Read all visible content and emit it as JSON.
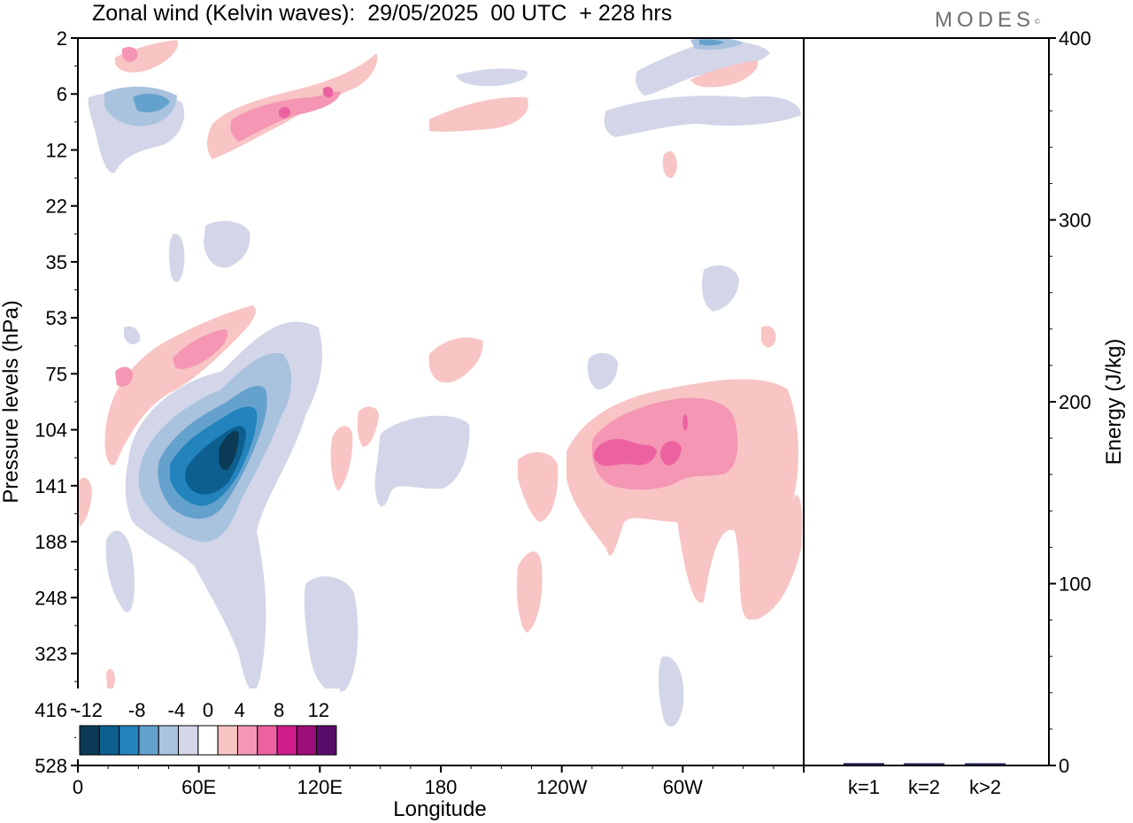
{
  "header": {
    "title": "Zonal wind (Kelvin waves):  29/05/2025  00 UTC  + 228 hrs",
    "logo": "MODES",
    "logo_mark": "©"
  },
  "chart_data": [
    {
      "type": "heatmap",
      "title": "Zonal wind (Kelvin waves):  29/05/2025  00 UTC  + 228 hrs",
      "xlabel": "Longitude",
      "ylabel": "Pressure levels (hPa)",
      "x_ticks": [
        "0",
        "60E",
        "120E",
        "180",
        "120W",
        "60W"
      ],
      "x_tick_values": [
        0,
        60,
        120,
        180,
        240,
        300
      ],
      "xlim": [
        0,
        360
      ],
      "y_ticks": [
        "2",
        "6",
        "12",
        "22",
        "35",
        "53",
        "75",
        "104",
        "141",
        "188",
        "248",
        "323",
        "416",
        "528"
      ],
      "y_scale": "pressure levels (inverted, model levels)",
      "colorbar": {
        "labels": [
          "-12",
          "-8",
          "-4",
          "0",
          "4",
          "8",
          "12"
        ],
        "levels": [
          -14,
          -12,
          -10,
          -8,
          -6,
          -4,
          -2,
          2,
          4,
          6,
          8,
          10,
          12,
          14
        ],
        "colors": [
          "#0b3a55",
          "#0d5f8f",
          "#2283bd",
          "#64a2cd",
          "#a9c2de",
          "#d2d6e8",
          "#ffffff",
          "#f8c4c4",
          "#f496b4",
          "#ec62a0",
          "#cf1e8b",
          "#9c0f78",
          "#5a0c6a"
        ]
      },
      "features": [
        {
          "name": "easterly core",
          "lon": 75,
          "level": "104-141",
          "min_value": -14
        },
        {
          "name": "westerly core",
          "lon": 280,
          "level": "104-141",
          "max_value": 8
        }
      ]
    },
    {
      "type": "bar",
      "categories": [
        "k=1",
        "k=2",
        "k>2"
      ],
      "values": [
        0.8,
        0.3,
        0.5
      ],
      "ylabel": "Energy (J/kg)",
      "ylim": [
        0,
        400
      ],
      "y_ticks": [
        0,
        100,
        200,
        300,
        400
      ],
      "bar_color": "#1a1a4a"
    }
  ]
}
